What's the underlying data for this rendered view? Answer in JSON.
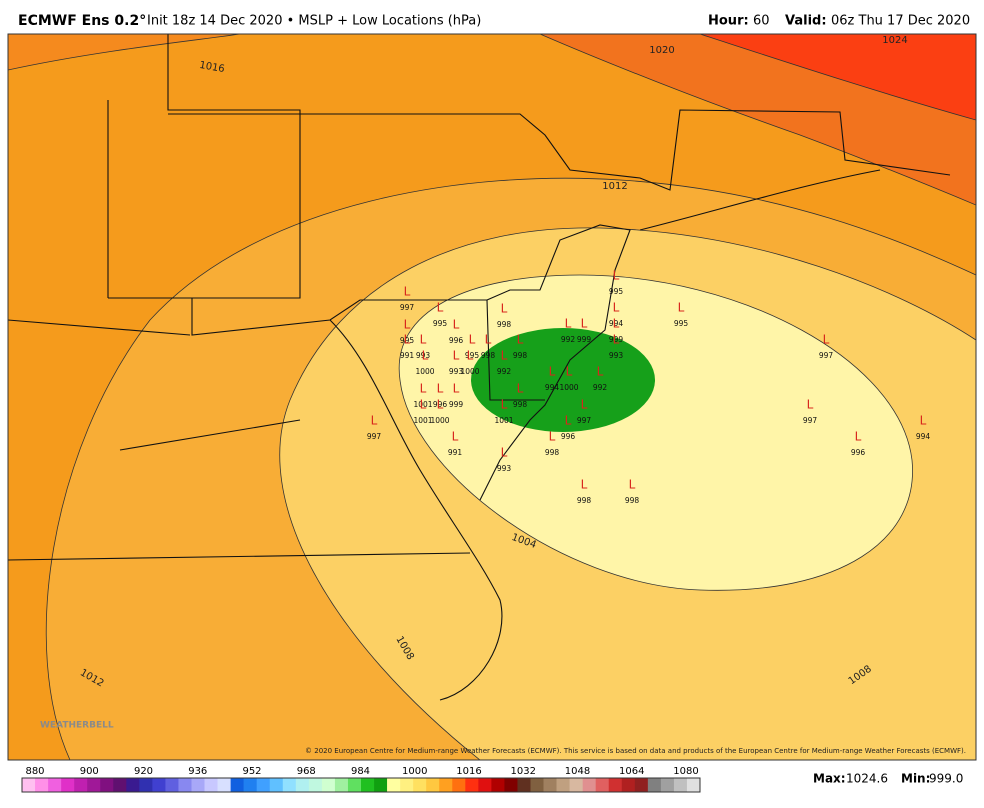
{
  "header": {
    "title": "ECMWF Ens 0.2°",
    "subtitle": "Init 18z 14 Dec 2020 • MSLP + Low Locations (hPa)",
    "hour_label": "Hour:",
    "hour": "60",
    "valid_label": "Valid:",
    "valid": "06z Thu 17 Dec 2020"
  },
  "map": {
    "low_marker": "L",
    "lows": [
      "997",
      "995",
      "995",
      "991",
      "993",
      "1000",
      "996",
      "995",
      "998",
      "998",
      "998",
      "992",
      "1000",
      "993",
      "1001",
      "996",
      "999",
      "1000",
      "1001",
      "997",
      "991",
      "1001",
      "998",
      "994",
      "1000",
      "992",
      "999",
      "995",
      "994",
      "999",
      "993",
      "992",
      "997",
      "996",
      "998",
      "993",
      "995",
      "997",
      "997",
      "996",
      "994",
      "998",
      "998"
    ],
    "contour_labels": [
      "1016",
      "1020",
      "1024",
      "1012",
      "1004",
      "1008",
      "1012",
      "1008"
    ],
    "copyright": "© 2020 European Centre for Medium-range Weather Forecasts (ECMWF). This service is based on data and products of the European Centre for Medium-range Weather Forecasts (ECMWF).",
    "watermark": "WEATHERBELL"
  },
  "colorbar": {
    "ticks": [
      "880",
      "900",
      "920",
      "936",
      "952",
      "968",
      "984",
      "1000",
      "1016",
      "1032",
      "1048",
      "1064",
      "1080"
    ]
  },
  "footer": {
    "max_label": "Max:",
    "max": "1024.6",
    "min_label": "Min:",
    "min": "999.0"
  }
}
